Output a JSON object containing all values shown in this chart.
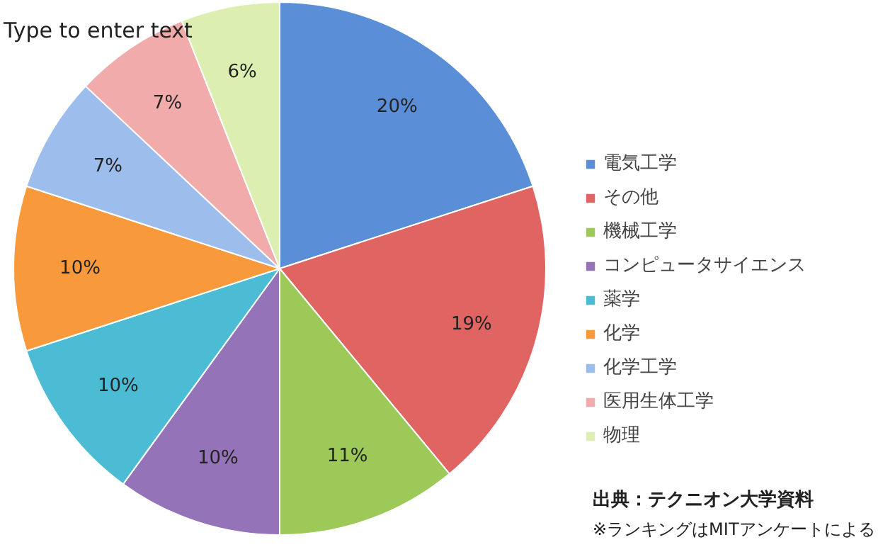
{
  "chart_data": {
    "type": "pie",
    "categories": [
      "電気工学",
      "その他",
      "機械工学",
      "コンピュータサイエンス",
      "薬学",
      "化学",
      "化学工学",
      "医用生体工学",
      "物理"
    ],
    "values": [
      20,
      19,
      11,
      10,
      10,
      10,
      7,
      7,
      6
    ],
    "colors": [
      "#5a8fd8",
      "#e06462",
      "#9cc957",
      "#9473b8",
      "#4bbcd4",
      "#f89a3c",
      "#9dbdec",
      "#f2abab",
      "#dcefb0"
    ],
    "value_labels": [
      "20%",
      "19%",
      "11%",
      "10%",
      "10%",
      "10%",
      "7%",
      "7%",
      "6%"
    ],
    "legend": "right",
    "annotations": [
      "Type to enter text",
      "出典：テクニオン大学資料",
      "※ランキングはMITアンケートによる"
    ]
  }
}
